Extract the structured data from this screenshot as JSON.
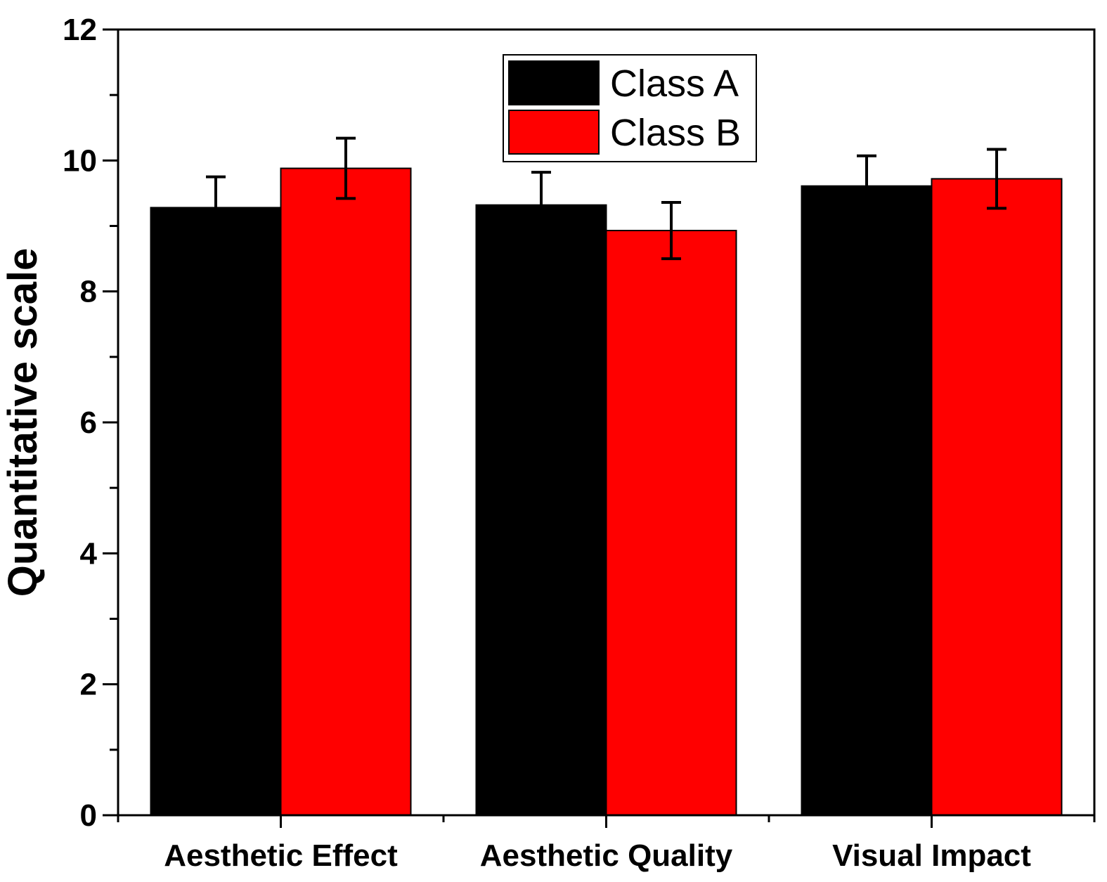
{
  "chart_data": {
    "type": "bar",
    "title": "",
    "xlabel": "",
    "ylabel": "Quantitative scale",
    "ylim": [
      0,
      12
    ],
    "yticks": [
      0,
      2,
      4,
      6,
      8,
      10,
      12
    ],
    "grid": false,
    "legend_position": "top-center",
    "categories": [
      "Aesthetic Effect",
      "Aesthetic Quality",
      "Visual Impact"
    ],
    "series": [
      {
        "name": "Class A",
        "color": "#000000",
        "values": [
          9.28,
          9.32,
          9.61
        ],
        "errors": [
          0.47,
          0.5,
          0.46
        ]
      },
      {
        "name": "Class B",
        "color": "#ff0000",
        "values": [
          9.88,
          8.93,
          9.72
        ],
        "errors": [
          0.46,
          0.43,
          0.45
        ]
      }
    ]
  }
}
